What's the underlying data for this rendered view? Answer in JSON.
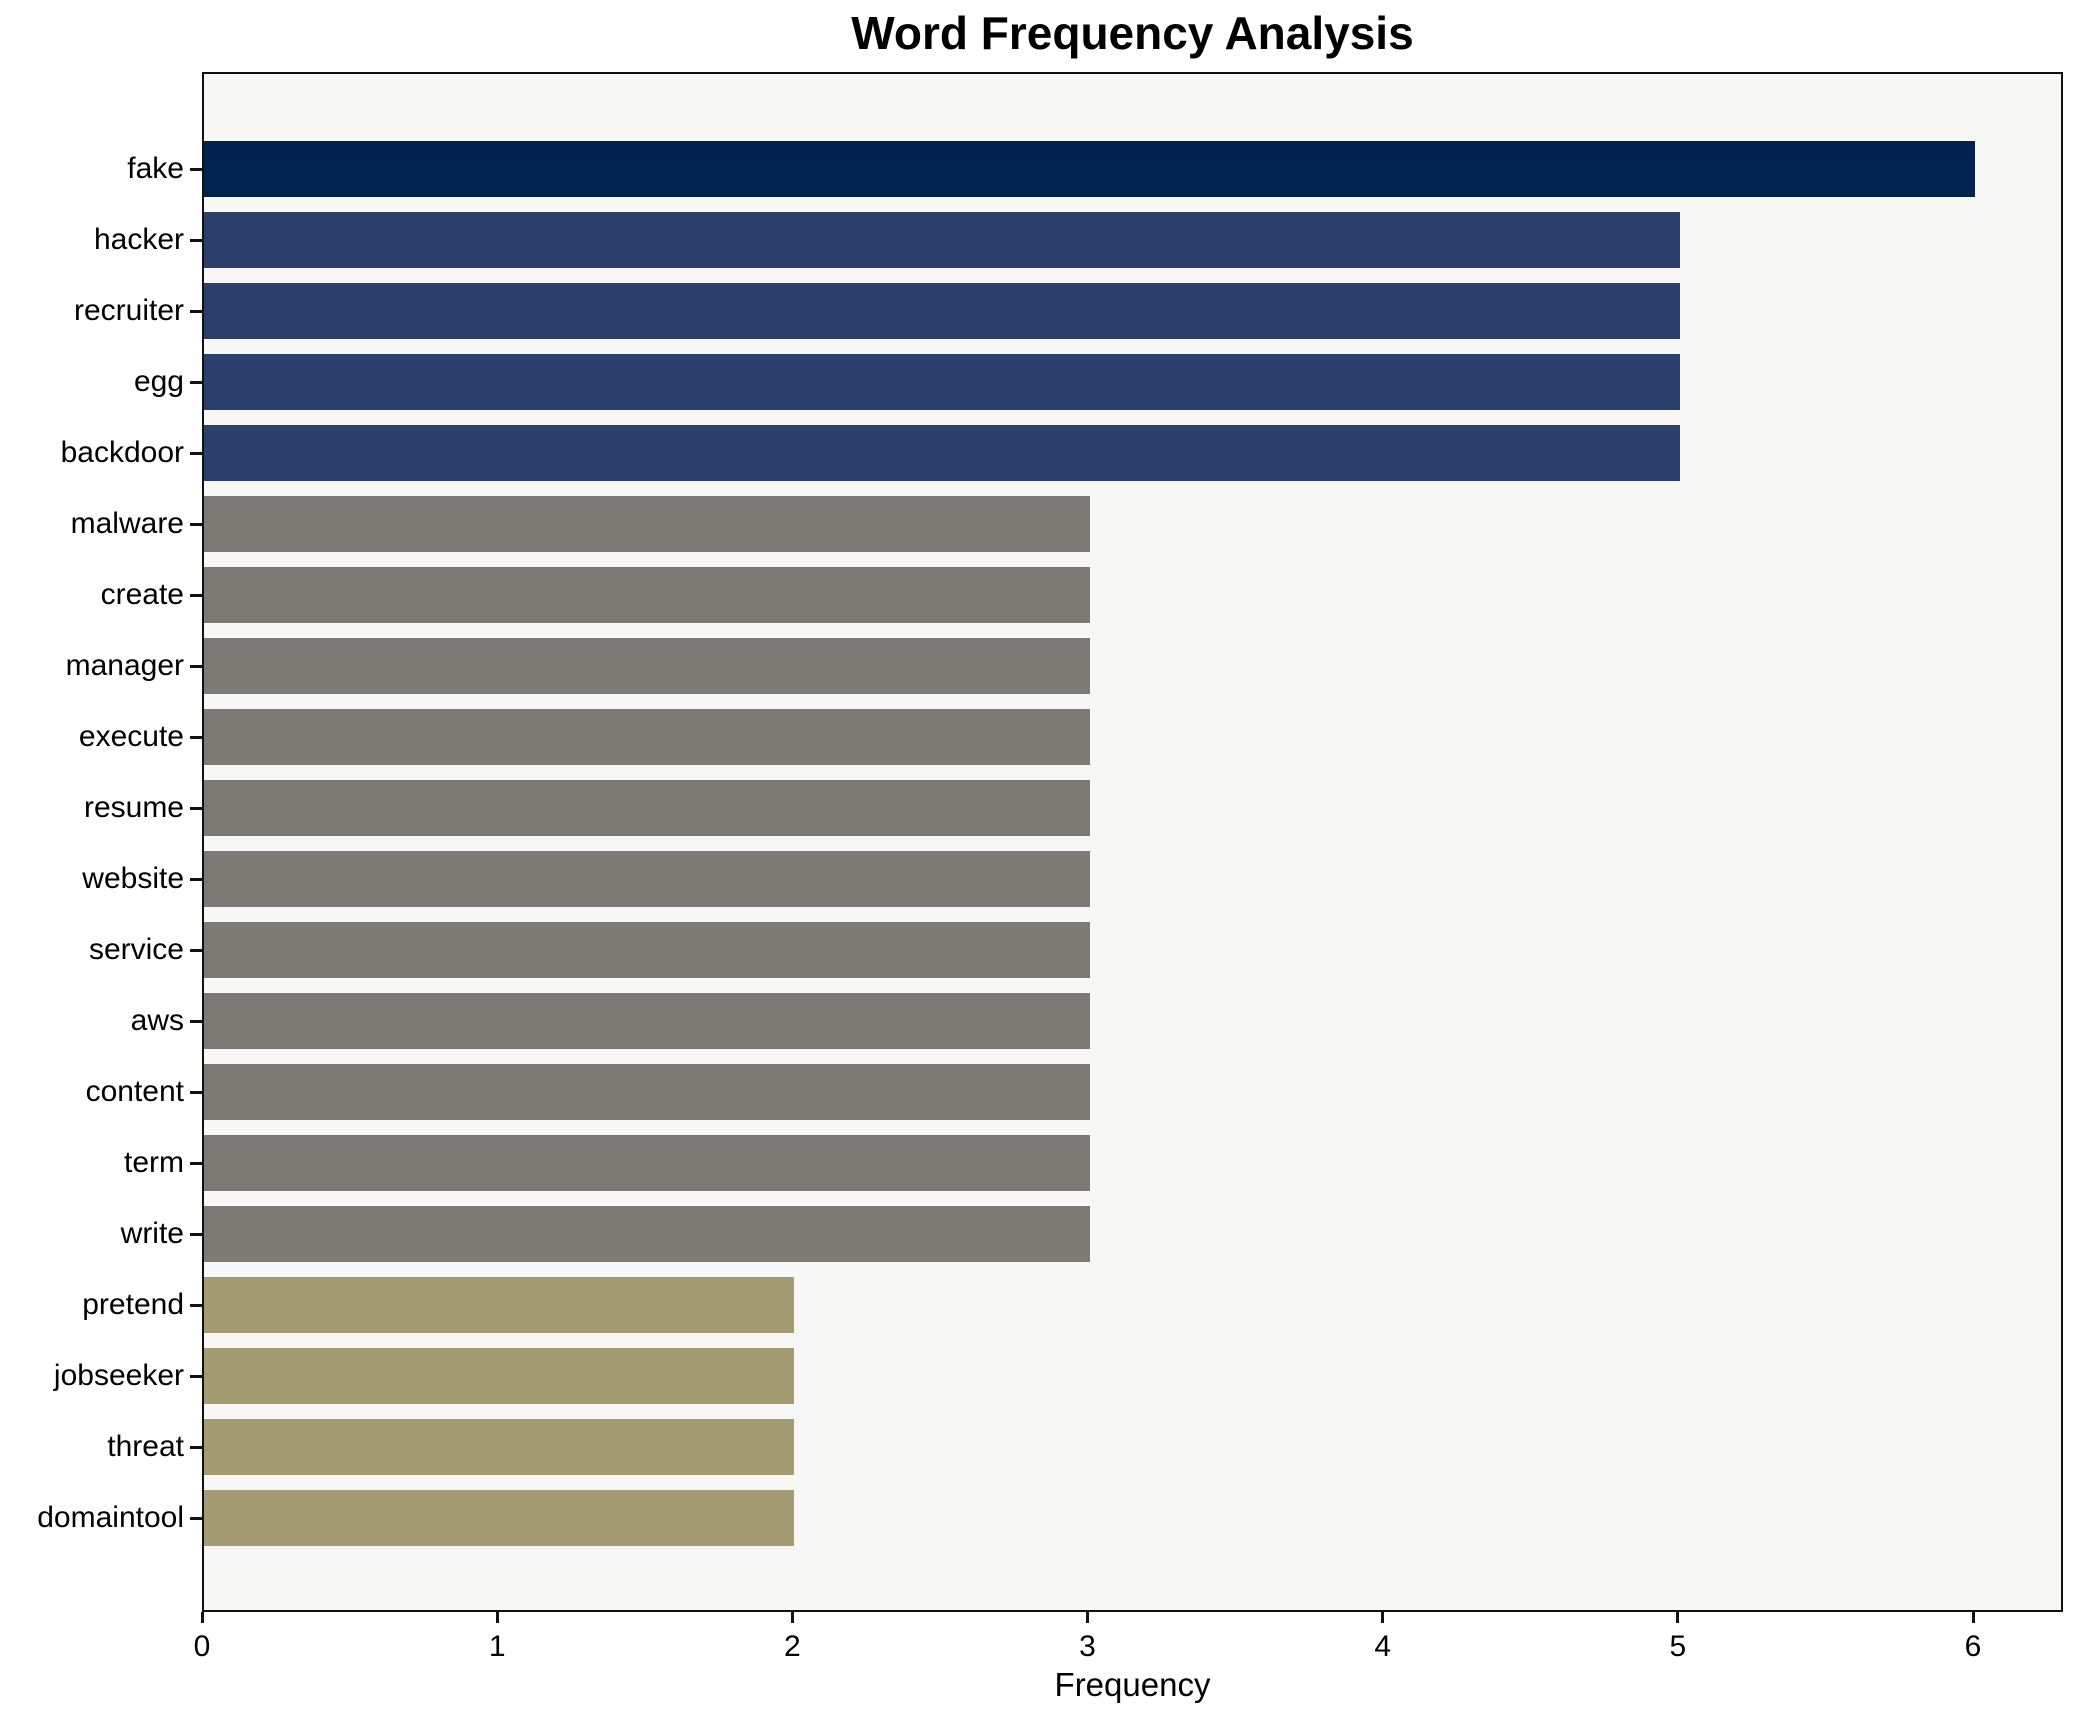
{
  "chart_data": {
    "type": "bar",
    "orientation": "horizontal",
    "title": "Word Frequency Analysis",
    "xlabel": "Frequency",
    "ylabel": "",
    "categories": [
      "fake",
      "hacker",
      "recruiter",
      "egg",
      "backdoor",
      "malware",
      "create",
      "manager",
      "execute",
      "resume",
      "website",
      "service",
      "aws",
      "content",
      "term",
      "write",
      "pretend",
      "jobseeker",
      "threat",
      "domaintool"
    ],
    "values": [
      6,
      5,
      5,
      5,
      5,
      3,
      3,
      3,
      3,
      3,
      3,
      3,
      3,
      3,
      3,
      3,
      2,
      2,
      2,
      2
    ],
    "bar_colors": [
      "#00224e",
      "#2b406c",
      "#2b406c",
      "#2b406c",
      "#2b406c",
      "#7b7a75",
      "#7b7a75",
      "#7b7a75",
      "#7b7a75",
      "#7b7a75",
      "#7b7a75",
      "#7b7a75",
      "#7b7a75",
      "#7b7a75",
      "#7b7a75",
      "#7b7a75",
      "#a49b72",
      "#a49b72",
      "#a49b72",
      "#a49b72"
    ],
    "xlim": [
      0,
      6
    ],
    "xticks": [
      0,
      1,
      2,
      3,
      4,
      5,
      6
    ],
    "grid": false,
    "legend": "none",
    "colormap": "cividis",
    "palette": {
      "value_6": "#00224e",
      "value_5": "#2b406c",
      "value_3": "#7b7a75",
      "value_2": "#a49b72"
    },
    "plot_background": "#f7f7f5",
    "figure_background": "#ffffff",
    "spine_color": "#111111"
  }
}
